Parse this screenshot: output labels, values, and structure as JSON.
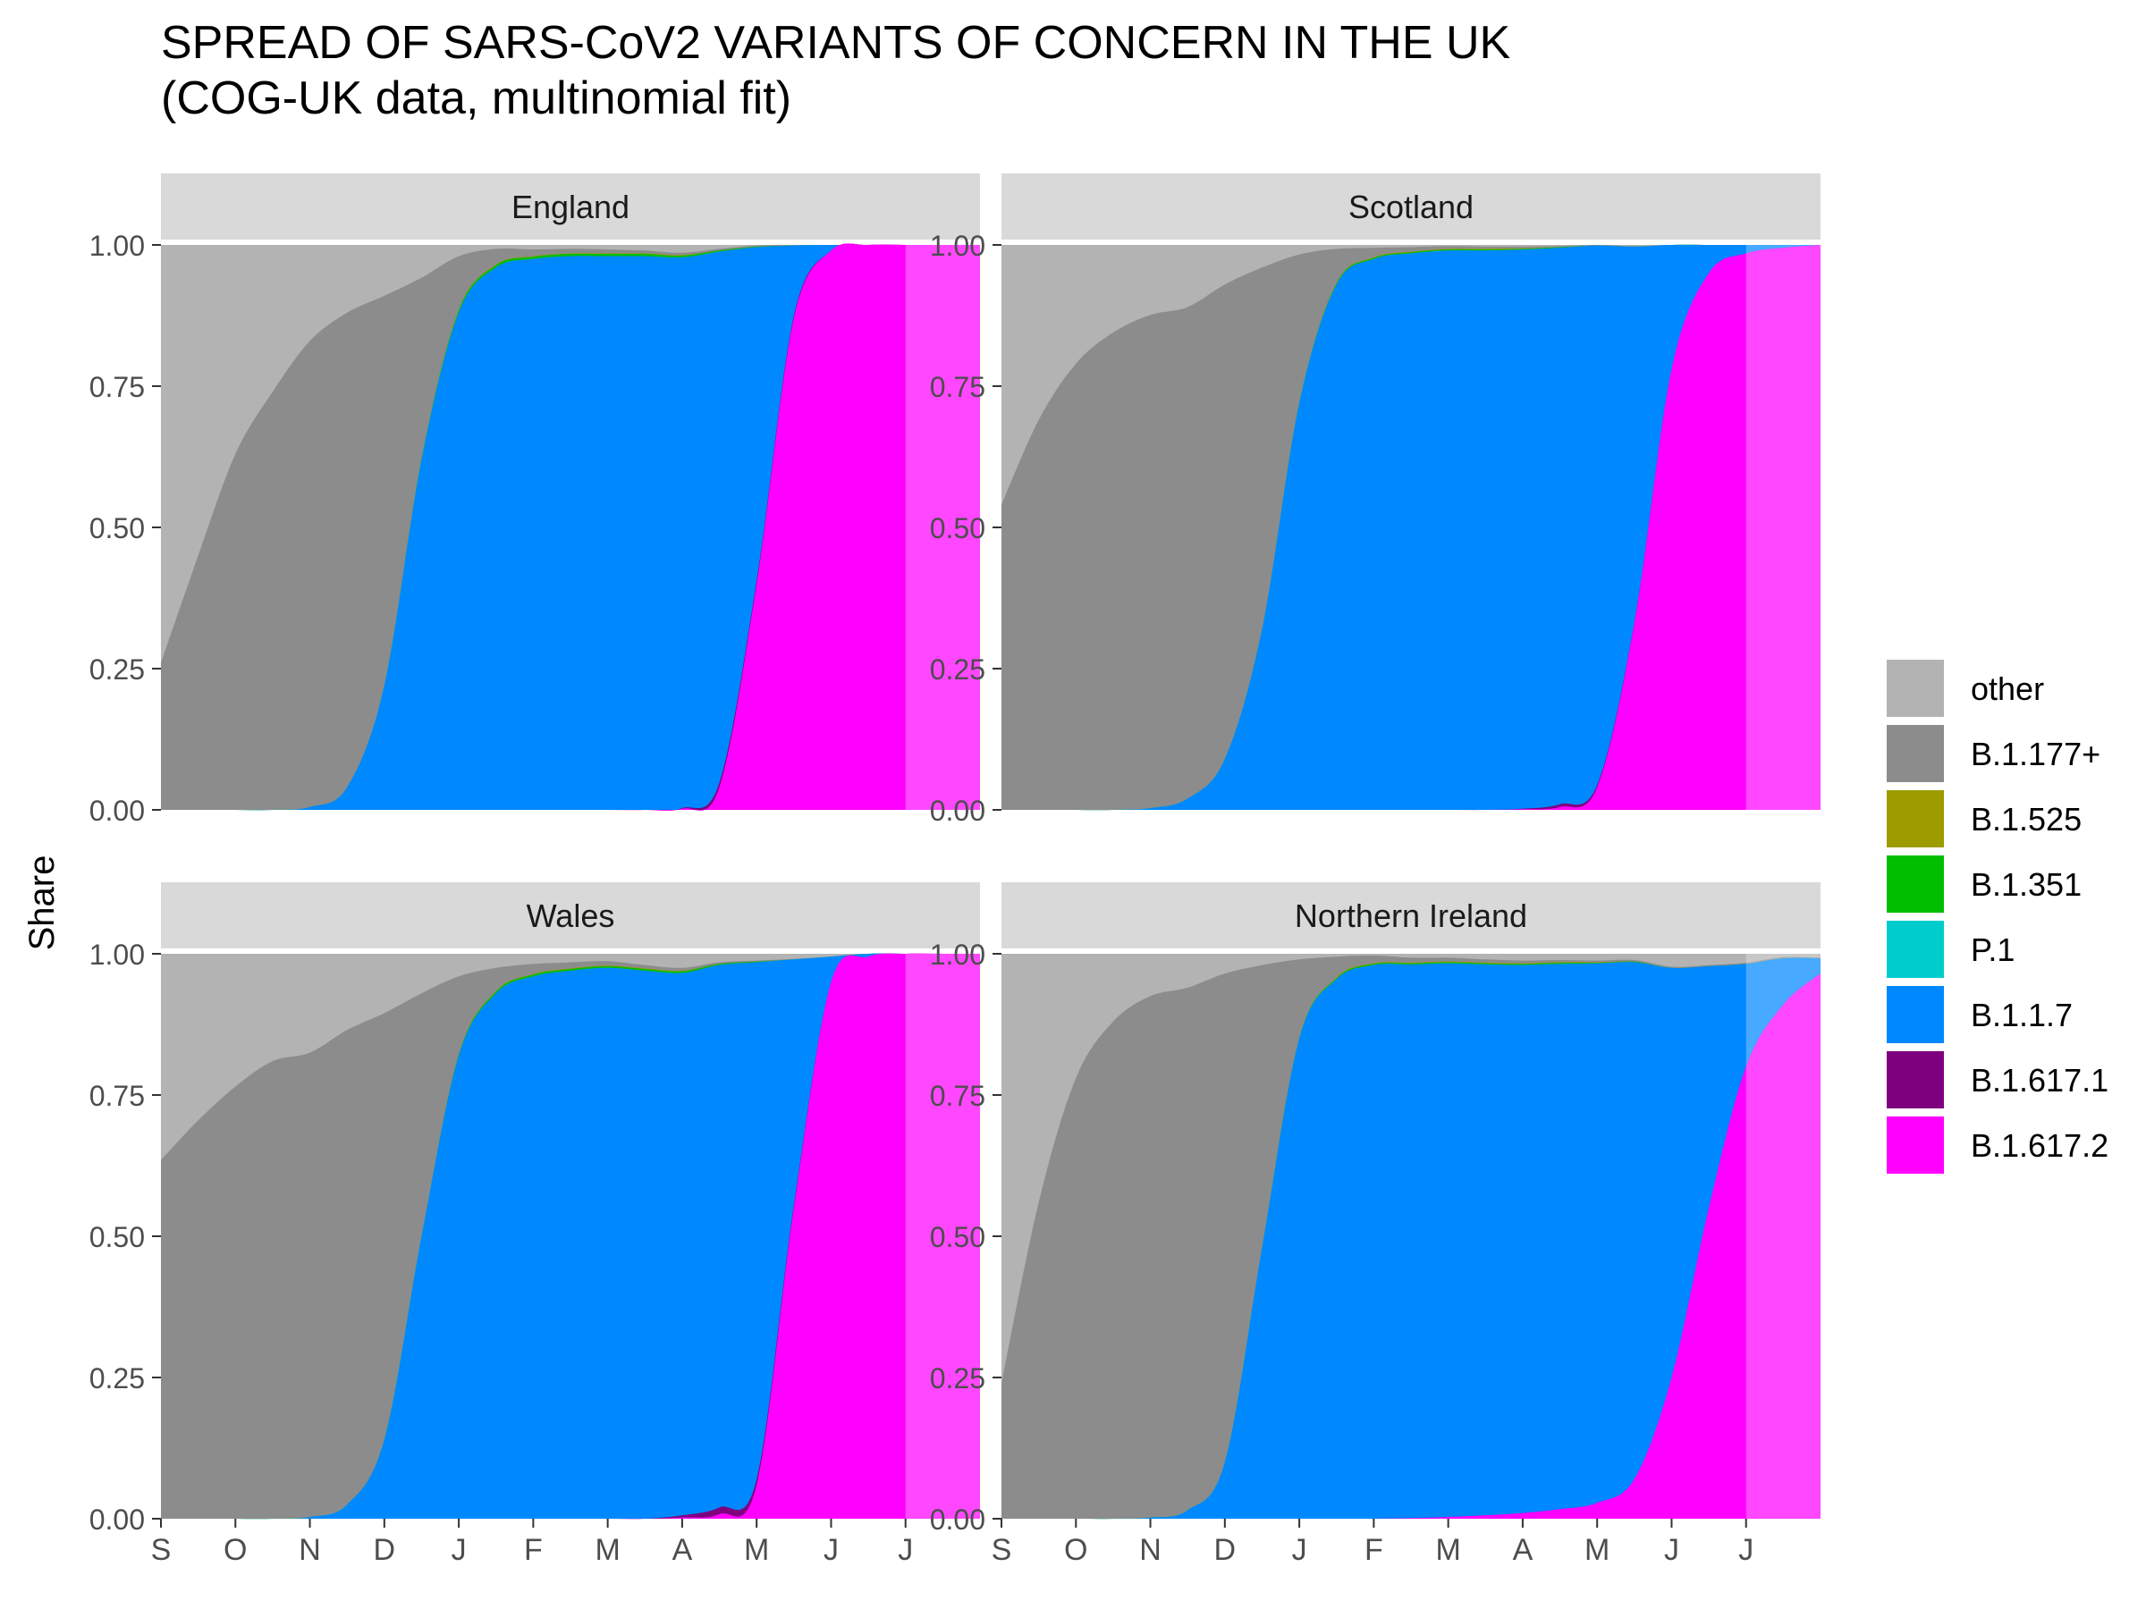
{
  "chart_data": {
    "type": "area",
    "stacked": true,
    "normalized": true,
    "title": "SPREAD OF SARS-CoV2 VARIANTS OF CONCERN IN THE UK",
    "subtitle": "(COG-UK data, multinomial fit)",
    "xlabel": "",
    "ylabel": "Share",
    "ylim": [
      0,
      1
    ],
    "yticks": [
      "0.00",
      "0.25",
      "0.50",
      "0.75",
      "1.00"
    ],
    "xticks": [
      "S",
      "O",
      "N",
      "D",
      "J",
      "F",
      "M",
      "A",
      "M",
      "J",
      "J"
    ],
    "x_unit": "month (tick = first of month, Sep 2020 to Jul 2021)",
    "legend_position": "right",
    "legend": [
      {
        "name": "other",
        "color": "#B3B3B3"
      },
      {
        "name": "B.1.177+",
        "color": "#8C8C8C"
      },
      {
        "name": "B.1.525",
        "color": "#9C9C00"
      },
      {
        "name": "B.1.351",
        "color": "#00BE00"
      },
      {
        "name": "P.1",
        "color": "#00CCCC"
      },
      {
        "name": "B.1.1.7",
        "color": "#0088FF"
      },
      {
        "name": "B.1.617.1",
        "color": "#7F007F"
      },
      {
        "name": "B.1.617.2",
        "color": "#FF00FF"
      }
    ],
    "facets": [
      {
        "name": "England",
        "x": [
          0,
          0.5,
          1,
          1.5,
          2,
          2.5,
          3,
          3.5,
          4,
          4.5,
          5,
          5.5,
          6,
          6.5,
          7,
          7.5,
          8,
          8.5,
          9,
          9.5,
          10,
          10.5,
          11
        ],
        "b16172": [
          0,
          0,
          0,
          0,
          0,
          0,
          0,
          0,
          0,
          0,
          0,
          0,
          0,
          0,
          0.002,
          0.04,
          0.4,
          0.87,
          0.99,
          1,
          1,
          1,
          1
        ],
        "b16171": [
          0,
          0,
          0,
          0,
          0,
          0,
          0,
          0,
          0,
          0,
          0,
          0,
          0,
          0,
          0.001,
          0.008,
          0.006,
          0.004,
          0,
          0,
          0,
          0,
          0
        ],
        "b117": [
          0,
          0,
          0,
          0,
          0.005,
          0.04,
          0.22,
          0.62,
          0.88,
          0.96,
          0.975,
          0.98,
          0.98,
          0.98,
          0.975,
          0.94,
          0.59,
          0.125,
          0.01,
          0,
          0,
          0,
          0
        ],
        "p1": [
          0,
          0,
          0,
          0,
          0,
          0,
          0,
          0,
          0,
          0,
          0,
          0,
          0,
          0,
          0,
          0,
          0,
          0,
          0,
          0,
          0,
          0,
          0
        ],
        "b1351": [
          0,
          0,
          0,
          0,
          0,
          0,
          0,
          0.002,
          0.004,
          0.004,
          0.004,
          0.004,
          0.004,
          0.004,
          0.003,
          0.002,
          0.001,
          0,
          0,
          0,
          0,
          0,
          0
        ],
        "b1525": [
          0,
          0,
          0,
          0,
          0,
          0,
          0,
          0,
          0.001,
          0.001,
          0.001,
          0.001,
          0.001,
          0.001,
          0.001,
          0,
          0,
          0,
          0,
          0,
          0,
          0,
          0
        ],
        "b1177": [
          0.26,
          0.45,
          0.63,
          0.74,
          0.825,
          0.84,
          0.69,
          0.32,
          0.095,
          0.028,
          0.012,
          0.008,
          0.007,
          0.005,
          0.004,
          0.003,
          0.002,
          0.001,
          0,
          0,
          0,
          0,
          0
        ]
      },
      {
        "name": "Scotland",
        "x": [
          0,
          0.5,
          1,
          1.5,
          2,
          2.5,
          3,
          3.5,
          4,
          4.5,
          5,
          5.5,
          6,
          6.5,
          7,
          7.5,
          8,
          8.5,
          9,
          9.5,
          10,
          10.5,
          11
        ],
        "b16172": [
          0,
          0,
          0,
          0,
          0,
          0,
          0,
          0,
          0,
          0,
          0,
          0,
          0,
          0,
          0.001,
          0.005,
          0.04,
          0.33,
          0.78,
          0.95,
          0.985,
          0.995,
          1
        ],
        "b16171": [
          0,
          0,
          0,
          0,
          0,
          0,
          0,
          0,
          0,
          0,
          0,
          0,
          0,
          0,
          0.001,
          0.005,
          0.004,
          0.002,
          0,
          0,
          0,
          0,
          0
        ],
        "b117": [
          0,
          0,
          0,
          0,
          0.003,
          0.02,
          0.09,
          0.32,
          0.72,
          0.93,
          0.975,
          0.985,
          0.99,
          0.99,
          0.99,
          0.985,
          0.955,
          0.665,
          0.22,
          0.05,
          0.015,
          0.005,
          0
        ],
        "p1": [
          0,
          0,
          0,
          0,
          0,
          0,
          0,
          0,
          0,
          0,
          0,
          0,
          0,
          0,
          0,
          0,
          0,
          0,
          0,
          0,
          0,
          0,
          0
        ],
        "b1351": [
          0,
          0,
          0,
          0,
          0,
          0,
          0,
          0,
          0.001,
          0.002,
          0.002,
          0.002,
          0.002,
          0.002,
          0.001,
          0.001,
          0,
          0,
          0,
          0,
          0,
          0,
          0
        ],
        "b1525": [
          0,
          0,
          0,
          0,
          0,
          0,
          0,
          0,
          0,
          0.001,
          0.001,
          0.001,
          0.001,
          0.001,
          0.001,
          0,
          0,
          0,
          0,
          0,
          0,
          0,
          0
        ],
        "b1177": [
          0.54,
          0.69,
          0.79,
          0.845,
          0.873,
          0.87,
          0.84,
          0.64,
          0.262,
          0.06,
          0.017,
          0.008,
          0.005,
          0.004,
          0.003,
          0.002,
          0.001,
          0.001,
          0,
          0,
          0,
          0,
          0
        ]
      },
      {
        "name": "Wales",
        "x": [
          0,
          0.5,
          1,
          1.5,
          2,
          2.5,
          3,
          3.5,
          4,
          4.5,
          5,
          5.5,
          6,
          6.5,
          7,
          7.5,
          8,
          8.5,
          9,
          9.5,
          10,
          10.5,
          11
        ],
        "b16172": [
          0,
          0,
          0,
          0,
          0,
          0,
          0,
          0,
          0,
          0,
          0,
          0,
          0,
          0,
          0.002,
          0.008,
          0.06,
          0.55,
          0.95,
          0.995,
          1,
          1,
          1
        ],
        "b16171": [
          0,
          0,
          0,
          0,
          0,
          0,
          0,
          0,
          0,
          0,
          0,
          0,
          0,
          0,
          0.004,
          0.012,
          0.01,
          0.005,
          0,
          0,
          0,
          0,
          0
        ],
        "b117": [
          0,
          0,
          0,
          0,
          0.003,
          0.025,
          0.14,
          0.5,
          0.82,
          0.93,
          0.96,
          0.97,
          0.975,
          0.97,
          0.96,
          0.96,
          0.915,
          0.435,
          0.045,
          0.005,
          0,
          0,
          0
        ],
        "p1": [
          0,
          0,
          0,
          0,
          0,
          0,
          0,
          0,
          0,
          0,
          0,
          0,
          0,
          0,
          0,
          0,
          0,
          0,
          0,
          0,
          0,
          0,
          0
        ],
        "b1351": [
          0,
          0,
          0,
          0,
          0,
          0,
          0,
          0,
          0.002,
          0.003,
          0.003,
          0.003,
          0.003,
          0.003,
          0.003,
          0.002,
          0.001,
          0,
          0,
          0,
          0,
          0,
          0
        ],
        "b1525": [
          0,
          0,
          0,
          0,
          0,
          0,
          0,
          0,
          0.001,
          0.001,
          0.001,
          0.001,
          0.001,
          0.001,
          0.001,
          0,
          0,
          0,
          0,
          0,
          0,
          0,
          0
        ],
        "b1177": [
          0.635,
          0.705,
          0.765,
          0.81,
          0.822,
          0.84,
          0.755,
          0.43,
          0.137,
          0.041,
          0.018,
          0.011,
          0.008,
          0.006,
          0.005,
          0.003,
          0.002,
          0.001,
          0,
          0,
          0,
          0,
          0
        ]
      },
      {
        "name": "Northern Ireland",
        "x": [
          0,
          0.5,
          1,
          1.5,
          2,
          2.5,
          3,
          3.5,
          4,
          4.5,
          5,
          5.5,
          6,
          6.5,
          7,
          7.5,
          8,
          8.5,
          9,
          9.5,
          10,
          10.5,
          11
        ],
        "b16172": [
          0,
          0,
          0,
          0,
          0,
          0,
          0,
          0,
          0,
          0,
          0,
          0.001,
          0.003,
          0.006,
          0.01,
          0.017,
          0.028,
          0.07,
          0.25,
          0.55,
          0.8,
          0.91,
          0.965
        ],
        "b16171": [
          0,
          0,
          0,
          0,
          0,
          0,
          0,
          0,
          0,
          0,
          0,
          0,
          0,
          0,
          0,
          0,
          0,
          0,
          0,
          0,
          0,
          0,
          0
        ],
        "b117": [
          0,
          0,
          0,
          0,
          0.002,
          0.015,
          0.1,
          0.48,
          0.85,
          0.955,
          0.98,
          0.98,
          0.98,
          0.975,
          0.97,
          0.965,
          0.955,
          0.915,
          0.725,
          0.428,
          0.182,
          0.082,
          0.027
        ],
        "p1": [
          0,
          0,
          0,
          0,
          0,
          0,
          0,
          0,
          0,
          0,
          0,
          0,
          0,
          0,
          0,
          0,
          0,
          0,
          0,
          0,
          0,
          0,
          0
        ],
        "b1351": [
          0,
          0,
          0,
          0,
          0,
          0,
          0,
          0,
          0.001,
          0.002,
          0.002,
          0.002,
          0.002,
          0.002,
          0.002,
          0.002,
          0.001,
          0.001,
          0,
          0,
          0,
          0,
          0
        ],
        "b1525": [
          0,
          0,
          0,
          0,
          0,
          0,
          0,
          0,
          0,
          0.001,
          0.001,
          0.001,
          0.001,
          0.001,
          0.001,
          0.001,
          0.001,
          0,
          0,
          0,
          0,
          0,
          0
        ],
        "b1177": [
          0.24,
          0.56,
          0.78,
          0.88,
          0.923,
          0.925,
          0.865,
          0.5,
          0.139,
          0.037,
          0.014,
          0.009,
          0.007,
          0.006,
          0.005,
          0.004,
          0.003,
          0.003,
          0.002,
          0.002,
          0.002,
          0.002,
          0.001
        ]
      }
    ]
  }
}
